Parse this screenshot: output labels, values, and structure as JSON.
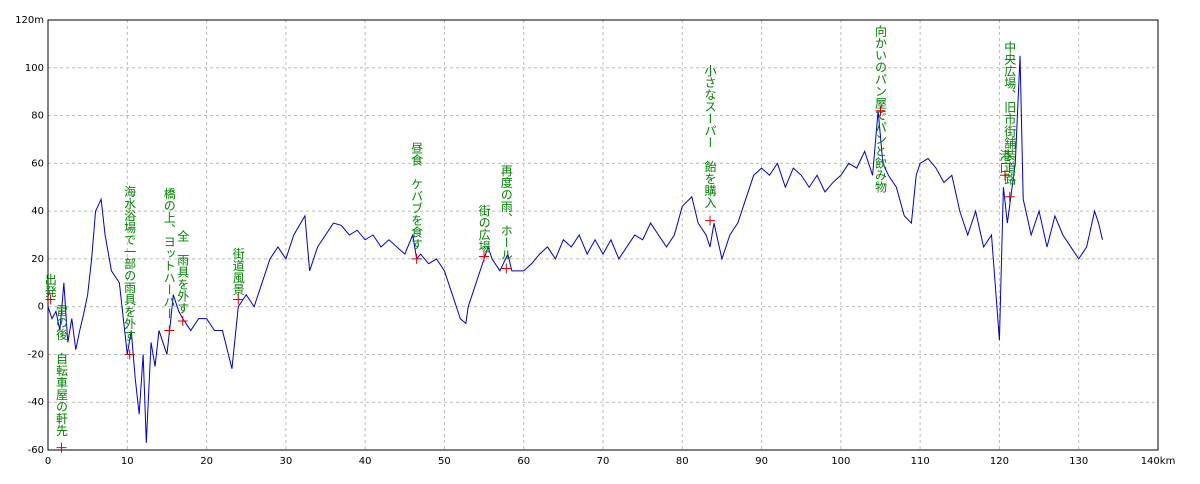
{
  "chart_data": {
    "type": "line",
    "x": [
      0,
      0.5,
      1,
      1.5,
      2,
      2.5,
      3,
      3.5,
      4,
      4.5,
      5,
      5.5,
      6,
      6.7,
      7.2,
      8,
      9,
      10,
      10.5,
      11,
      11.5,
      12,
      12.4,
      13,
      13.5,
      14,
      15,
      15.5,
      15.8,
      16.5,
      17,
      18,
      19,
      20,
      21,
      22,
      23.2,
      24,
      25,
      26,
      27,
      28,
      29,
      30,
      31,
      32.4,
      33,
      34,
      35,
      36,
      37,
      38,
      39,
      40,
      41,
      42,
      43,
      44,
      45,
      46,
      46.5,
      47,
      48,
      49,
      50,
      51,
      52,
      52.7,
      53,
      54,
      55,
      55.5,
      56,
      57,
      58,
      58.5,
      60,
      61,
      62,
      63,
      64,
      65,
      66,
      67,
      68,
      69,
      70,
      71,
      72,
      73,
      74,
      75,
      76,
      77,
      78,
      79,
      80,
      81.2,
      82,
      83,
      83.5,
      84,
      85,
      86,
      87,
      88,
      89,
      90,
      91,
      92,
      93,
      94,
      95,
      96,
      97,
      98,
      99,
      100,
      101,
      102,
      103,
      104,
      104.7,
      105.3,
      106,
      107,
      108,
      108.9,
      109.5,
      110,
      111,
      112,
      113,
      114,
      115,
      116,
      117,
      118,
      119,
      120,
      120.5,
      121,
      121.6,
      122,
      122.6,
      123,
      124,
      125,
      126,
      127,
      128,
      129,
      130,
      131,
      132,
      132.5,
      133
    ],
    "series": [
      {
        "color": "#0000cc",
        "values": [
          0,
          -5,
          -2,
          -10,
          10,
          -15,
          -5,
          -18,
          -10,
          -3,
          5,
          20,
          40,
          45,
          30,
          15,
          10,
          -20,
          -10,
          -30,
          -45,
          -20,
          -57,
          -15,
          -25,
          -10,
          -20,
          -5,
          5,
          -2,
          -5,
          -10,
          -5,
          -5,
          -10,
          -10,
          -26,
          0,
          5,
          0,
          10,
          20,
          25,
          20,
          30,
          38,
          15,
          25,
          30,
          35,
          34,
          30,
          32,
          28,
          30,
          25,
          28,
          25,
          22,
          30,
          20,
          22,
          18,
          20,
          15,
          5,
          -5,
          -7,
          0,
          10,
          20,
          25,
          20,
          15,
          22,
          15,
          15,
          18,
          22,
          25,
          20,
          28,
          25,
          30,
          22,
          28,
          22,
          28,
          20,
          25,
          30,
          28,
          35,
          30,
          25,
          30,
          42,
          46,
          35,
          30,
          25,
          35,
          20,
          30,
          35,
          45,
          55,
          58,
          55,
          60,
          50,
          58,
          55,
          50,
          55,
          48,
          52,
          55,
          60,
          58,
          65,
          55,
          82,
          60,
          55,
          50,
          38,
          35,
          55,
          60,
          62,
          58,
          52,
          55,
          40,
          30,
          40,
          25,
          30,
          -14,
          50,
          35,
          50,
          60,
          105,
          45,
          30,
          40,
          25,
          38,
          30,
          25,
          20,
          25,
          40,
          35,
          28
        ]
      }
    ],
    "xlim": [
      0,
      140
    ],
    "ylim": [
      -60,
      120
    ],
    "xticks": [
      0,
      10,
      20,
      30,
      40,
      50,
      60,
      70,
      80,
      90,
      100,
      110,
      120,
      130,
      {
        "value": 140,
        "label": "140km"
      }
    ],
    "yticks": [
      -60,
      -40,
      -20,
      0,
      20,
      40,
      60,
      80,
      100,
      {
        "value": 120,
        "label": "120m"
      }
    ],
    "grid": true,
    "annotations": [
      {
        "x": 0.3,
        "y": 3,
        "text": "出発"
      },
      {
        "x": 1.7,
        "y": -59,
        "text": "雷の後　自転車屋の軒先"
      },
      {
        "x": 10.3,
        "y": -20,
        "text": "海水浴場で一部の雨具を外す"
      },
      {
        "x": 15.3,
        "y": -10,
        "text": "橋の上、ヨットハーバー"
      },
      {
        "x": 17,
        "y": -6,
        "text": "全　雨具を外す"
      },
      {
        "x": 24,
        "y": 3,
        "text": "街道風景"
      },
      {
        "x": 46.5,
        "y": 20,
        "text": "昼食　ケバブを食す"
      },
      {
        "x": 55,
        "y": 21,
        "text": "街の広場"
      },
      {
        "x": 57.8,
        "y": 16,
        "text": "再度の雨、ホール"
      },
      {
        "x": 83.5,
        "y": 36,
        "text": "小さなスーパー　飴を購入"
      },
      {
        "x": 105,
        "y": 82,
        "text": "向かいのパン屋でパンと飲み物"
      },
      {
        "x": 120.7,
        "y": 55,
        "text": "港口"
      },
      {
        "x": 121.3,
        "y": 46,
        "text": "中央広場、旧市街舗装道路"
      }
    ]
  }
}
